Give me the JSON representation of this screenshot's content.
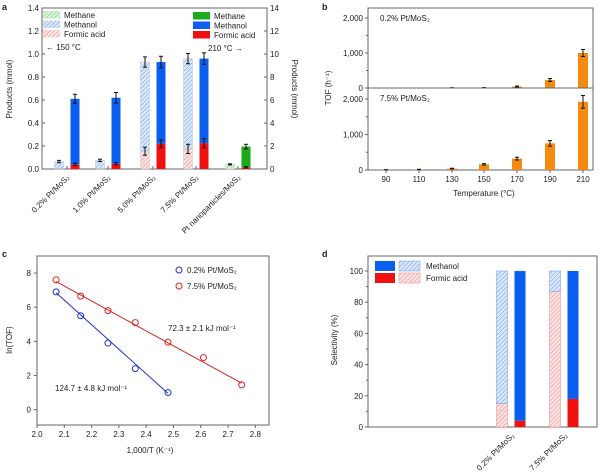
{
  "chart_data": [
    {
      "panel": "a",
      "type": "bar",
      "stacked": true,
      "categories": [
        "0.2% Pt/MoS₂",
        "1.0% Pt/MoS₂",
        "5.0% Pt/MoS₂",
        "7.5% Pt/MoS₂",
        "Pt nanoparticles/MoS₂"
      ],
      "ylabel_left": "Products (mmol)",
      "ylabel_right": "Products (mmol)",
      "ylim_left": [
        0,
        1.4
      ],
      "ylim_right": [
        0,
        14
      ],
      "yticks_left": [
        "0.0",
        "0.2",
        "0.4",
        "0.6",
        "0.8",
        "1.0",
        "1.2",
        "1.4"
      ],
      "yticks_right": [
        "0",
        "2",
        "4",
        "6",
        "8",
        "10",
        "12",
        "14"
      ],
      "legend_left": {
        "items": [
          "Methane",
          "Methanol",
          "Formic acid"
        ],
        "note": "← 150 °C",
        "style": "hatched"
      },
      "legend_right": {
        "items": [
          "Methane",
          "Methanol",
          "Formic acid"
        ],
        "note": "210 °C →",
        "style": "solid"
      },
      "series_150C_left_axis": {
        "formic_acid": [
          0.005,
          0.005,
          0.155,
          0.175,
          0
        ],
        "methanol": [
          0.06,
          0.07,
          0.775,
          0.785,
          0
        ],
        "methane": [
          0,
          0,
          0,
          0,
          0.04
        ],
        "total_error": [
          0.01,
          0.01,
          0.045,
          0.045,
          0.005
        ],
        "formic_error": [
          0,
          0,
          0.035,
          0.04,
          0
        ]
      },
      "series_210C_right_axis": {
        "formic_acid": [
          0.4,
          0.45,
          2.2,
          2.25,
          0.15
        ],
        "methanol": [
          5.7,
          5.75,
          7.1,
          7.35,
          0
        ],
        "methane": [
          0,
          0,
          0,
          0,
          1.8
        ],
        "total_error": [
          0.4,
          0.45,
          0.5,
          0.5,
          0.2
        ],
        "formic_error": [
          0.1,
          0.1,
          0.35,
          0.4,
          0.05
        ]
      },
      "colors": {
        "methane": "#1aaa1a",
        "methanol": "#0a5ef0",
        "formic_acid": "#f01010"
      }
    },
    {
      "panel": "b",
      "type": "bar",
      "xlabel": "Temperature (°C)",
      "ylabel": "TOF (h⁻¹)",
      "categories": [
        "90",
        "110",
        "130",
        "150",
        "170",
        "190",
        "210"
      ],
      "ylim": [
        0,
        2000
      ],
      "yticks": [
        "0",
        "1,000",
        "2,000"
      ],
      "panels": [
        {
          "label": "0.2% Pt/MoS₂",
          "values": [
            0,
            0,
            5,
            10,
            40,
            230,
            1000
          ],
          "errors": [
            0,
            0,
            5,
            5,
            15,
            40,
            100
          ]
        },
        {
          "label": "7.5% Pt/MoS₂",
          "values": [
            5,
            15,
            40,
            160,
            320,
            750,
            1920
          ],
          "errors": [
            3,
            5,
            10,
            20,
            40,
            80,
            180
          ]
        }
      ],
      "color": "#f58a10"
    },
    {
      "panel": "c",
      "type": "scatter",
      "xlabel": "1,000/T (K⁻¹)",
      "ylabel": "ln(TOF)",
      "xlim": [
        2.0,
        2.85
      ],
      "ylim": [
        -0.9,
        9.0
      ],
      "xticks": [
        "2.0",
        "2.1",
        "2.2",
        "2.3",
        "2.4",
        "2.5",
        "2.6",
        "2.7",
        "2.8"
      ],
      "yticks": [
        "0",
        "2",
        "4",
        "6",
        "8"
      ],
      "series": [
        {
          "name": "0.2% Pt/MoS₂",
          "color": "#2030d0",
          "x": [
            2.07,
            2.16,
            2.26,
            2.36,
            2.48
          ],
          "y": [
            6.9,
            5.5,
            3.9,
            2.4,
            1.0
          ],
          "fit": [
            [
              2.07,
              6.85
            ],
            [
              2.48,
              0.95
            ]
          ],
          "annotation": "124.7 ± 4.8 kJ mol⁻¹"
        },
        {
          "name": "7.5% Pt/MoS₂",
          "color": "#e02020",
          "x": [
            2.07,
            2.16,
            2.26,
            2.36,
            2.48,
            2.61,
            2.75
          ],
          "y": [
            7.6,
            6.65,
            5.8,
            5.1,
            3.95,
            3.05,
            1.45
          ],
          "fit": [
            [
              2.07,
              7.5
            ],
            [
              2.75,
              1.55
            ]
          ],
          "annotation": "72.3 ± 2.1 kJ mol⁻¹"
        }
      ],
      "legend": "top-right"
    },
    {
      "panel": "d",
      "type": "bar",
      "stacked": true,
      "ylabel": "Selectivity (%)",
      "ylim": [
        0,
        110
      ],
      "yticks": [
        "0",
        "20",
        "40",
        "60",
        "80",
        "100"
      ],
      "categories": [
        "0.2% Pt/MoS₂",
        "7.5% Pt/MoS₂"
      ],
      "legend": [
        "Methanol",
        "Formic acid"
      ],
      "hatched_formic_acid": [
        15,
        87
      ],
      "hatched_methanol": [
        85,
        13
      ],
      "solid_formic_acid": [
        4,
        18
      ],
      "solid_methanol": [
        96,
        82
      ],
      "colors": {
        "methanol": "#0a5ef0",
        "formic_acid": "#f01010"
      }
    }
  ],
  "panel_labels": [
    "a",
    "b",
    "c",
    "d"
  ]
}
